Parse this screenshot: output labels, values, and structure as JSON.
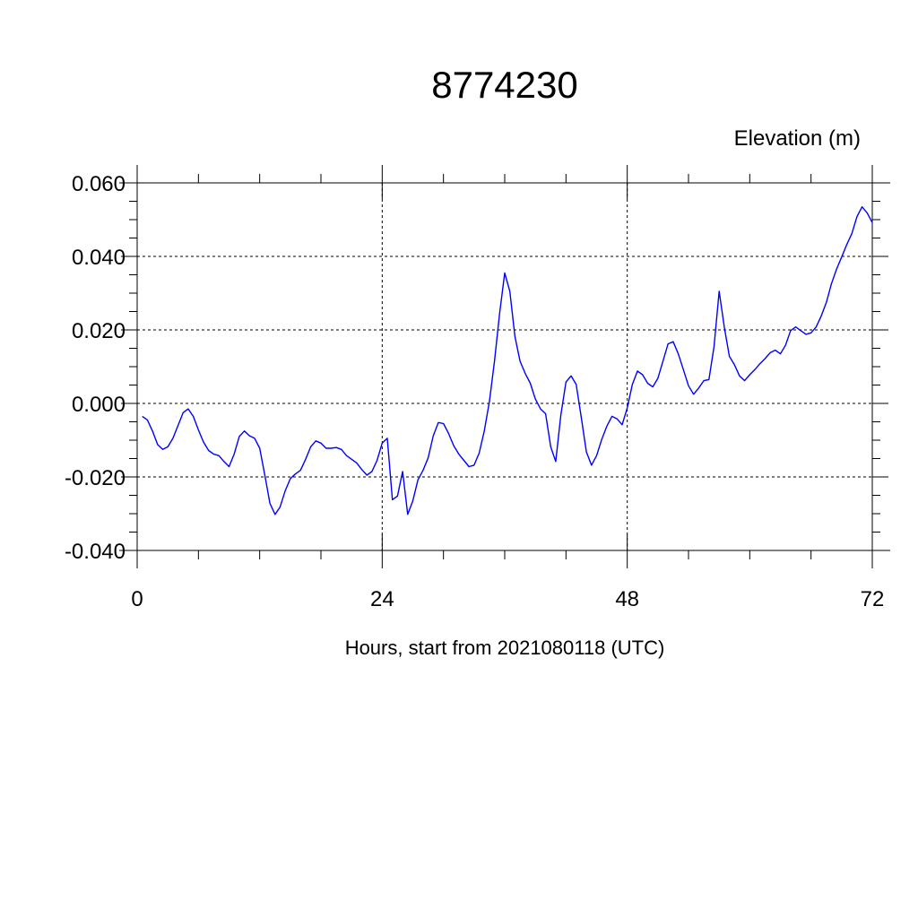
{
  "chart_data": {
    "type": "line",
    "title": "8774230",
    "ylabel": "Elevation (m)",
    "xlabel": "Hours, start from 2021080118 (UTC)",
    "xlim": [
      0,
      72
    ],
    "ylim": [
      -0.04,
      0.06
    ],
    "x_ticks": [
      0,
      24,
      48,
      72
    ],
    "x_tick_labels": [
      "0",
      "24",
      "48",
      "72"
    ],
    "y_ticks": [
      -0.04,
      -0.02,
      0.0,
      0.02,
      0.04,
      0.06
    ],
    "y_tick_labels": [
      "-0.040",
      "-0.020",
      "0.000",
      "0.020",
      "0.040",
      "0.060"
    ],
    "grid": true,
    "line_color": "#0000ff",
    "series": [
      {
        "x": [
          0.5,
          1.0,
          1.5,
          2.0,
          2.5,
          3.0,
          3.5,
          4.0,
          4.5,
          5.0,
          5.5,
          6.0,
          6.5,
          7.0,
          7.5,
          8.0,
          8.5,
          9.0,
          9.5,
          10.0,
          10.5,
          11.0,
          11.5,
          12.0,
          12.5,
          13.0,
          13.5,
          14.0,
          14.5,
          15.0,
          15.5,
          16.0,
          16.5,
          17.0,
          17.5,
          18.0,
          18.5,
          19.0,
          19.5,
          20.0,
          20.5,
          21.0,
          21.5,
          22.0,
          22.5,
          23.0,
          23.5,
          24.0,
          24.5,
          25.0,
          25.5,
          26.0,
          26.5,
          27.0,
          27.5,
          28.0,
          28.5,
          29.0,
          29.5,
          30.0,
          30.5,
          31.0,
          31.5,
          32.0,
          32.5,
          33.0,
          33.5,
          34.0,
          34.5,
          35.0,
          35.5,
          36.0,
          36.5,
          37.0,
          37.5,
          38.0,
          38.5,
          39.0,
          39.5,
          40.0,
          40.5,
          41.0,
          41.5,
          42.0,
          42.5,
          43.0,
          43.5,
          44.0,
          44.5,
          45.0,
          45.5,
          46.0,
          46.5,
          47.0,
          47.5,
          48.0,
          48.5,
          49.0,
          49.5,
          50.0,
          50.5,
          51.0,
          51.5,
          52.0,
          52.5,
          53.0,
          53.5,
          54.0,
          54.5,
          55.0,
          55.5,
          56.0,
          56.5,
          57.0,
          57.5,
          58.0,
          58.5,
          59.0,
          59.5,
          60.0,
          60.5,
          61.0,
          61.5,
          62.0,
          62.5,
          63.0,
          63.5,
          64.0,
          64.5,
          65.0,
          65.5,
          66.0,
          66.5,
          67.0,
          67.5,
          68.0,
          68.5,
          69.0,
          69.5,
          70.0,
          70.5,
          71.0,
          71.5,
          72.0
        ],
        "y": [
          -0.0035,
          -0.0045,
          -0.0075,
          -0.0112,
          -0.0125,
          -0.0118,
          -0.0095,
          -0.006,
          -0.0025,
          -0.0015,
          -0.0035,
          -0.0072,
          -0.0105,
          -0.0128,
          -0.0138,
          -0.0142,
          -0.0158,
          -0.0172,
          -0.0138,
          -0.009,
          -0.0075,
          -0.0088,
          -0.0095,
          -0.0122,
          -0.0195,
          -0.0272,
          -0.0302,
          -0.0282,
          -0.0238,
          -0.0205,
          -0.0192,
          -0.0182,
          -0.0152,
          -0.0118,
          -0.0102,
          -0.0108,
          -0.0122,
          -0.0122,
          -0.012,
          -0.0125,
          -0.0142,
          -0.0152,
          -0.0162,
          -0.018,
          -0.0195,
          -0.0185,
          -0.0155,
          -0.0108,
          -0.0095,
          -0.0262,
          -0.0252,
          -0.0185,
          -0.0302,
          -0.0265,
          -0.0208,
          -0.0182,
          -0.0148,
          -0.0088,
          -0.0052,
          -0.0055,
          -0.0082,
          -0.0115,
          -0.0138,
          -0.0155,
          -0.0172,
          -0.0168,
          -0.0135,
          -0.0075,
          0.0005,
          0.0115,
          0.0245,
          0.0355,
          0.0305,
          0.0182,
          0.0115,
          0.0082,
          0.0055,
          0.0012,
          -0.0015,
          -0.0028,
          -0.0118,
          -0.0158,
          -0.0032,
          0.0058,
          0.0075,
          0.0052,
          -0.0038,
          -0.0132,
          -0.0168,
          -0.0142,
          -0.0098,
          -0.0062,
          -0.0035,
          -0.0042,
          -0.0058,
          -0.0012,
          0.0052,
          0.0088,
          0.0078,
          0.0055,
          0.0045,
          0.0068,
          0.0115,
          0.0162,
          0.0168,
          0.0135,
          0.0092,
          0.0048,
          0.0025,
          0.0042,
          0.0062,
          0.0065,
          0.0155,
          0.0305,
          0.0208,
          0.0128,
          0.0105,
          0.0075,
          0.0062,
          0.0078,
          0.0092,
          0.0108,
          0.0122,
          0.0138,
          0.0145,
          0.0135,
          0.0158,
          0.0198,
          0.0208,
          0.0198,
          0.0188,
          0.0192,
          0.0208,
          0.0238,
          0.0275,
          0.0325,
          0.0365,
          0.0398,
          0.0432,
          0.0462,
          0.0508,
          0.0535,
          0.0518,
          0.0492
        ]
      }
    ]
  }
}
